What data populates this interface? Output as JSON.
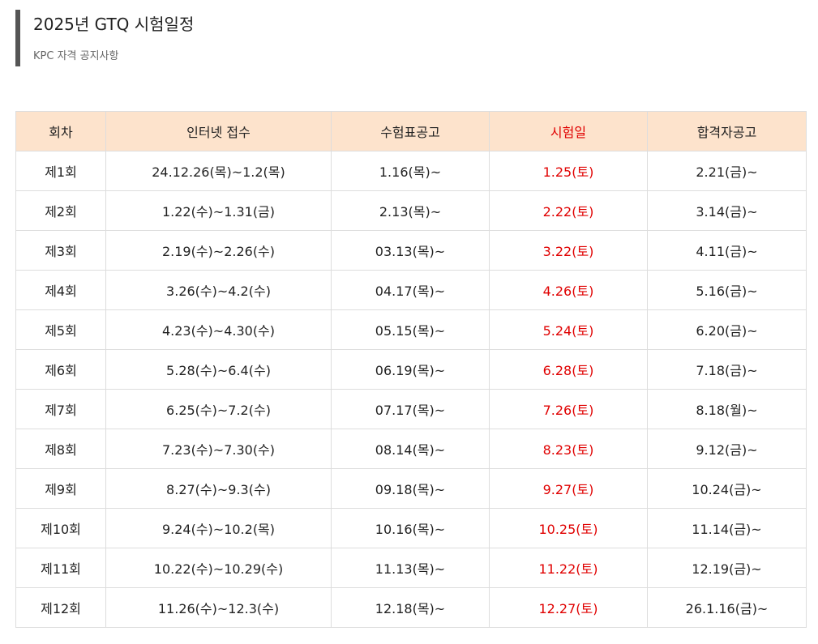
{
  "header": {
    "title": "2025년 GTQ 시험일정",
    "subtitle": "KPC 자격 공지사항"
  },
  "colors": {
    "header_bg": "#fde3cc",
    "exam_date": "#e00000",
    "accent_bar": "#555555"
  },
  "table": {
    "columns": [
      "회차",
      "인터넷 접수",
      "수험표공고",
      "시험일",
      "합격자공고"
    ],
    "rows": [
      [
        "제1회",
        "24.12.26(목)~1.2(목)",
        "1.16(목)~",
        "1.25(토)",
        "2.21(금)~"
      ],
      [
        "제2회",
        "1.22(수)~1.31(금)",
        "2.13(목)~",
        "2.22(토)",
        "3.14(금)~"
      ],
      [
        "제3회",
        "2.19(수)~2.26(수)",
        "03.13(목)~",
        "3.22(토)",
        "4.11(금)~"
      ],
      [
        "제4회",
        "3.26(수)~4.2(수)",
        "04.17(목)~",
        "4.26(토)",
        "5.16(금)~"
      ],
      [
        "제5회",
        "4.23(수)~4.30(수)",
        "05.15(목)~",
        "5.24(토)",
        "6.20(금)~"
      ],
      [
        "제6회",
        "5.28(수)~6.4(수)",
        "06.19(목)~",
        "6.28(토)",
        "7.18(금)~"
      ],
      [
        "제7회",
        "6.25(수)~7.2(수)",
        "07.17(목)~",
        "7.26(토)",
        "8.18(월)~"
      ],
      [
        "제8회",
        "7.23(수)~7.30(수)",
        "08.14(목)~",
        "8.23(토)",
        "9.12(금)~"
      ],
      [
        "제9회",
        "8.27(수)~9.3(수)",
        "09.18(목)~",
        "9.27(토)",
        "10.24(금)~"
      ],
      [
        "제10회",
        "9.24(수)~10.2(목)",
        "10.16(목)~",
        "10.25(토)",
        "11.14(금)~"
      ],
      [
        "제11회",
        "10.22(수)~10.29(수)",
        "11.13(목)~",
        "11.22(토)",
        "12.19(금)~"
      ],
      [
        "제12회",
        "11.26(수)~12.3(수)",
        "12.18(목)~",
        "12.27(토)",
        "26.1.16(금)~"
      ]
    ]
  }
}
